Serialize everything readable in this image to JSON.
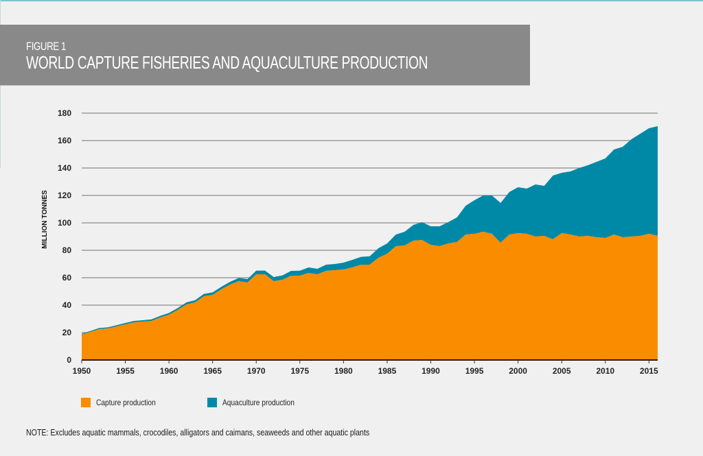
{
  "header": {
    "figure_number": "FIGURE 1",
    "title": "WORLD CAPTURE FISHERIES AND AQUACULTURE PRODUCTION"
  },
  "legend": {
    "items": [
      {
        "label": "Capture production",
        "color": "#fa8c00"
      },
      {
        "label": "Aquaculture production",
        "color": "#0089a6"
      }
    ]
  },
  "note": "NOTE: Excludes aquatic mammals, crocodiles, alligators and caimans, seaweeds and other aquatic plants",
  "chart_data": {
    "type": "area",
    "stacked": true,
    "title": "WORLD CAPTURE FISHERIES AND AQUACULTURE PRODUCTION",
    "xlabel": "",
    "ylabel": "MILLION TONNES",
    "xlim": [
      1950,
      2016
    ],
    "ylim": [
      0,
      180
    ],
    "yticks": [
      0,
      20,
      40,
      60,
      80,
      100,
      120,
      140,
      160,
      180
    ],
    "xticks": [
      1950,
      1955,
      1960,
      1965,
      1970,
      1975,
      1980,
      1985,
      1990,
      1995,
      2000,
      2005,
      2010,
      2015
    ],
    "grid": true,
    "legend_position": "bottom-left",
    "x": [
      1950,
      1951,
      1952,
      1953,
      1954,
      1955,
      1956,
      1957,
      1958,
      1959,
      1960,
      1961,
      1962,
      1963,
      1964,
      1965,
      1966,
      1967,
      1968,
      1969,
      1970,
      1971,
      1972,
      1973,
      1974,
      1975,
      1976,
      1977,
      1978,
      1979,
      1980,
      1981,
      1982,
      1983,
      1984,
      1985,
      1986,
      1987,
      1988,
      1989,
      1990,
      1991,
      1992,
      1993,
      1994,
      1995,
      1996,
      1997,
      1998,
      1999,
      2000,
      2001,
      2002,
      2003,
      2004,
      2005,
      2006,
      2007,
      2008,
      2009,
      2010,
      2011,
      2012,
      2013,
      2014,
      2015,
      2016
    ],
    "series": [
      {
        "name": "Capture production",
        "color": "#fa8c00",
        "values": [
          18.5,
          20.5,
          22.5,
          23,
          24.5,
          26,
          27.5,
          28,
          28.5,
          31,
          33,
          36.5,
          40.5,
          42,
          46.5,
          47.5,
          51.5,
          55,
          57.5,
          56.5,
          62.5,
          62.5,
          57.5,
          58.5,
          61.5,
          61.5,
          63.5,
          62.5,
          65,
          65.5,
          66,
          67.5,
          69.5,
          69.5,
          74.5,
          77.5,
          83,
          83.5,
          87,
          87.5,
          84,
          83,
          85,
          86,
          91.5,
          92,
          93.5,
          92,
          85.5,
          91.5,
          92.5,
          92,
          90,
          90.5,
          88,
          92.5,
          91.5,
          90,
          90.5,
          89.5,
          89,
          91.5,
          89.5,
          90,
          90.5,
          92,
          90.5
        ]
      },
      {
        "name": "Aquaculture production",
        "color": "#0089a6",
        "values": [
          0.6,
          0.7,
          0.8,
          0.8,
          0.9,
          1,
          1,
          1,
          1.1,
          1.2,
          1.3,
          1.4,
          1.5,
          1.6,
          1.7,
          1.8,
          1.9,
          2,
          2.3,
          2.5,
          2.6,
          2.7,
          3,
          3.2,
          3.5,
          3.6,
          4,
          4,
          4.5,
          4.5,
          5,
          5.5,
          5.7,
          6.1,
          7,
          7.5,
          8.5,
          10,
          11.5,
          13,
          13.5,
          14.5,
          15.5,
          18,
          21,
          24.5,
          26.5,
          28,
          29,
          31,
          33.5,
          33,
          38,
          36.5,
          46.5,
          44,
          46,
          50,
          51.5,
          55,
          58,
          62,
          66,
          71,
          74.5,
          77,
          80
        ]
      }
    ]
  }
}
